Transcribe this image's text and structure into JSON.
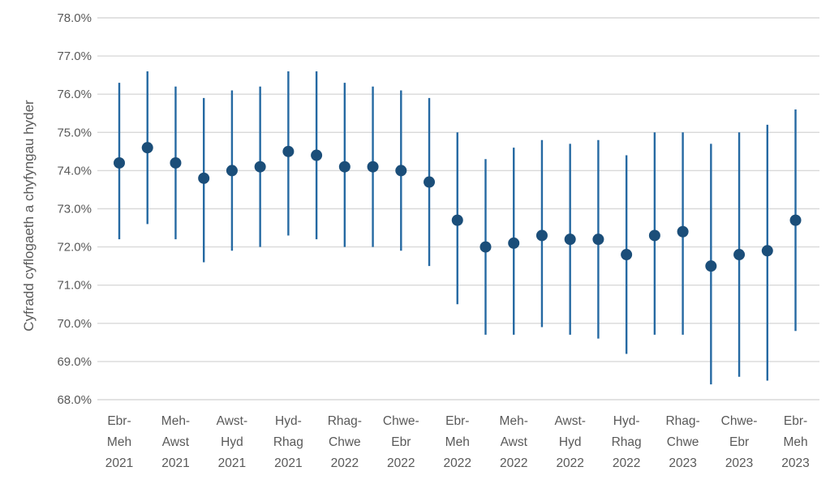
{
  "chart_data": {
    "type": "scatter",
    "subtype": "dot-with-confidence-interval-error-bars",
    "title": "",
    "xlabel": "",
    "ylabel": "Cyfradd cyflogaeth a chyfyngau hyder",
    "ylim": [
      68.0,
      78.0
    ],
    "y_tick_step": 1.0,
    "y_ticks": [
      "78.0%",
      "77.0%",
      "76.0%",
      "75.0%",
      "74.0%",
      "73.0%",
      "72.0%",
      "71.0%",
      "70.0%",
      "69.0%",
      "68.0%"
    ],
    "grid": "horizontal-only",
    "legend_position": "none",
    "colors": {
      "marker": "#1b4e79",
      "error_bar": "#2569a2",
      "gridline": "#d9d9d9",
      "tick_text": "#595959",
      "axis_title_text": "#595959"
    },
    "points": [
      {
        "value": 74.2,
        "ci_low": 72.2,
        "ci_high": 76.3,
        "label_lines": [
          "Ebr-",
          "Meh",
          "2021"
        ]
      },
      {
        "value": 74.6,
        "ci_low": 72.6,
        "ci_high": 76.6,
        "label_lines": null
      },
      {
        "value": 74.2,
        "ci_low": 72.2,
        "ci_high": 76.2,
        "label_lines": [
          "Meh-",
          "Awst",
          "2021"
        ]
      },
      {
        "value": 73.8,
        "ci_low": 71.6,
        "ci_high": 75.9,
        "label_lines": null
      },
      {
        "value": 74.0,
        "ci_low": 71.9,
        "ci_high": 76.1,
        "label_lines": [
          "Awst-",
          "Hyd",
          "2021"
        ]
      },
      {
        "value": 74.1,
        "ci_low": 72.0,
        "ci_high": 76.2,
        "label_lines": null
      },
      {
        "value": 74.5,
        "ci_low": 72.3,
        "ci_high": 76.6,
        "label_lines": [
          "Hyd-",
          "Rhag",
          "2021"
        ]
      },
      {
        "value": 74.4,
        "ci_low": 72.2,
        "ci_high": 76.6,
        "label_lines": null
      },
      {
        "value": 74.1,
        "ci_low": 72.0,
        "ci_high": 76.3,
        "label_lines": [
          "Rhag-",
          "Chwe",
          "2022"
        ]
      },
      {
        "value": 74.1,
        "ci_low": 72.0,
        "ci_high": 76.2,
        "label_lines": null
      },
      {
        "value": 74.0,
        "ci_low": 71.9,
        "ci_high": 76.1,
        "label_lines": [
          "Chwe-",
          "Ebr",
          "2022"
        ]
      },
      {
        "value": 73.7,
        "ci_low": 71.5,
        "ci_high": 75.9,
        "label_lines": null
      },
      {
        "value": 72.7,
        "ci_low": 70.5,
        "ci_high": 75.0,
        "label_lines": [
          "Ebr-",
          "Meh",
          "2022"
        ]
      },
      {
        "value": 72.0,
        "ci_low": 69.7,
        "ci_high": 74.3,
        "label_lines": null
      },
      {
        "value": 72.1,
        "ci_low": 69.7,
        "ci_high": 74.6,
        "label_lines": [
          "Meh-",
          "Awst",
          "2022"
        ]
      },
      {
        "value": 72.3,
        "ci_low": 69.9,
        "ci_high": 74.8,
        "label_lines": null
      },
      {
        "value": 72.2,
        "ci_low": 69.7,
        "ci_high": 74.7,
        "label_lines": [
          "Awst-",
          "Hyd",
          "2022"
        ]
      },
      {
        "value": 72.2,
        "ci_low": 69.6,
        "ci_high": 74.8,
        "label_lines": null
      },
      {
        "value": 71.8,
        "ci_low": 69.2,
        "ci_high": 74.4,
        "label_lines": [
          "Hyd-",
          "Rhag",
          "2022"
        ]
      },
      {
        "value": 72.3,
        "ci_low": 69.7,
        "ci_high": 75.0,
        "label_lines": null
      },
      {
        "value": 72.4,
        "ci_low": 69.7,
        "ci_high": 75.0,
        "label_lines": [
          "Rhag-",
          "Chwe",
          "2023"
        ]
      },
      {
        "value": 71.5,
        "ci_low": 68.4,
        "ci_high": 74.7,
        "label_lines": null
      },
      {
        "value": 71.8,
        "ci_low": 68.6,
        "ci_high": 75.0,
        "label_lines": [
          "Chwe-",
          "Ebr",
          "2023"
        ]
      },
      {
        "value": 71.9,
        "ci_low": 68.5,
        "ci_high": 75.2,
        "label_lines": null
      },
      {
        "value": 72.7,
        "ci_low": 69.8,
        "ci_high": 75.6,
        "label_lines": [
          "Ebr-",
          "Meh",
          "2023"
        ]
      }
    ]
  }
}
